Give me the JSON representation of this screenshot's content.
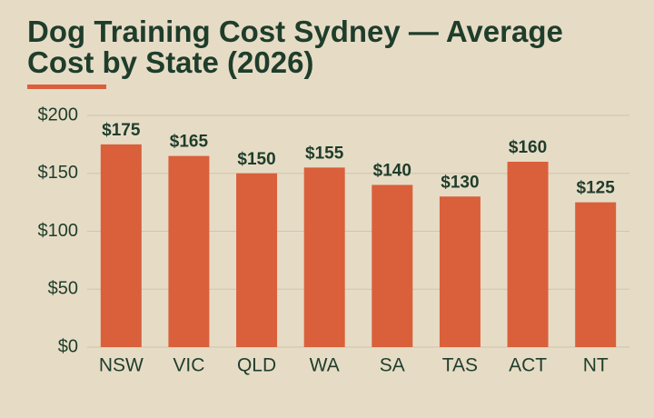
{
  "chart_data": {
    "type": "bar",
    "title": "Dog Training Cost Sydney — Average Cost by State (2026)",
    "categories": [
      "NSW",
      "VIC",
      "QLD",
      "WA",
      "SA",
      "TAS",
      "ACT",
      "NT"
    ],
    "values": [
      175,
      165,
      150,
      155,
      140,
      130,
      160,
      125
    ],
    "value_labels": [
      "$175",
      "$165",
      "$150",
      "$155",
      "$140",
      "$130",
      "$160",
      "$125"
    ],
    "color": "#d9603b",
    "ylim": [
      0,
      200
    ],
    "yticks": [
      {
        "value": 0,
        "label": "$0"
      },
      {
        "value": 50,
        "label": "$50"
      },
      {
        "value": 100,
        "label": "$100"
      },
      {
        "value": 150,
        "label": "$150"
      },
      {
        "value": 200,
        "label": "$200"
      }
    ],
    "grid": true
  }
}
